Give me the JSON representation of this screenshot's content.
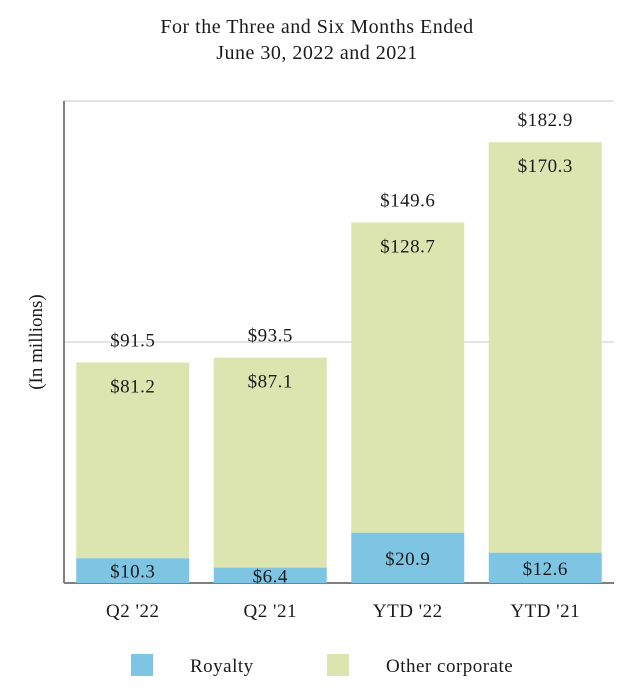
{
  "chart_data": {
    "type": "bar",
    "stacked": true,
    "title_lines": [
      "For the Three and Six Months Ended",
      "June 30, 2022 and 2021"
    ],
    "ylabel": "(In millions)",
    "xlabel": "",
    "categories": [
      "Q2 '22",
      "Q2 '21",
      "YTD '22",
      "YTD '21"
    ],
    "series": [
      {
        "name": "Royalty",
        "color": "#7ec4e3",
        "values": [
          10.3,
          6.4,
          20.9,
          12.6
        ],
        "labels": [
          "$10.3",
          "$6.4",
          "$20.9",
          "$12.6"
        ]
      },
      {
        "name": "Other corporate",
        "color": "#dce5b0",
        "values": [
          81.2,
          87.1,
          128.7,
          170.3
        ],
        "labels": [
          "$81.2",
          "$87.1",
          "$128.7",
          "$170.3"
        ]
      }
    ],
    "totals": [
      91.5,
      93.5,
      149.6,
      182.9
    ],
    "total_labels": [
      "$91.5",
      "$93.5",
      "$149.6",
      "$182.9"
    ],
    "ylim": [
      0,
      200
    ],
    "gridlines": [
      100,
      200
    ],
    "grid": true,
    "legend_position": "bottom"
  }
}
